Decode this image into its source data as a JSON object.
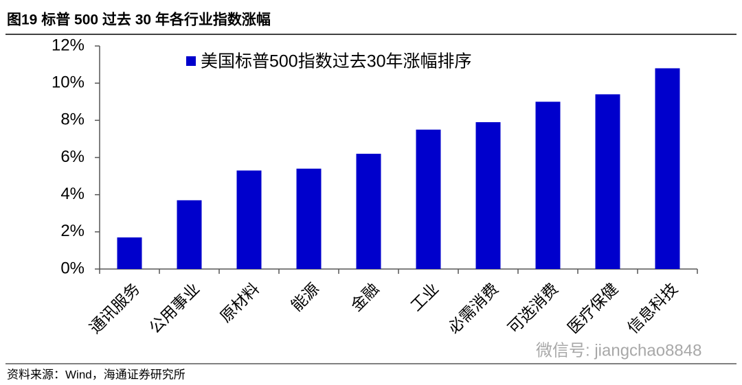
{
  "chart_data": {
    "type": "bar",
    "title": "图19 标普 500 过去 30 年各行业指数涨幅",
    "categories": [
      "通讯服务",
      "公用事业",
      "原材料",
      "能源",
      "金融",
      "工业",
      "必需消费",
      "可选消费",
      "医疗保健",
      "信息科技"
    ],
    "series": [
      {
        "name": "美国标普500指数过去30年涨幅排序",
        "color": "#0000cc",
        "values": [
          1.7,
          3.7,
          5.3,
          5.4,
          6.2,
          7.5,
          7.9,
          9.0,
          9.4,
          10.8
        ]
      }
    ],
    "ylim": [
      0,
      12
    ],
    "yticks": [
      {
        "value": 0,
        "label": "0%"
      },
      {
        "value": 2,
        "label": "2%"
      },
      {
        "value": 4,
        "label": "4%"
      },
      {
        "value": 6,
        "label": "6%"
      },
      {
        "value": 8,
        "label": "8%"
      },
      {
        "value": 10,
        "label": "10%"
      },
      {
        "value": 12,
        "label": "12%"
      }
    ],
    "grid": false
  },
  "source": "资料来源：Wind，海通证券研究所",
  "watermark": "微信号: jiangchao8848"
}
